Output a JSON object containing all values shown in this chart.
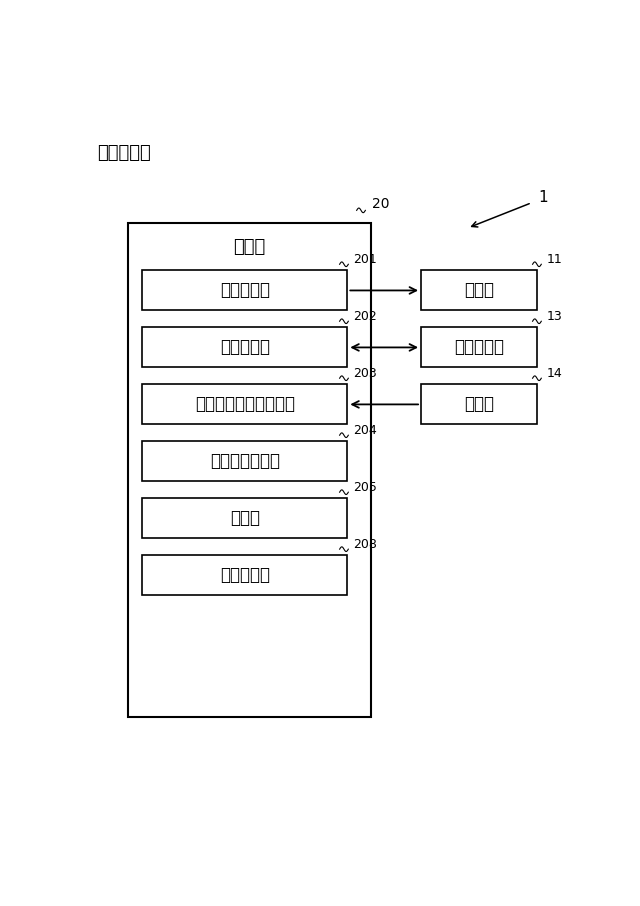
{
  "title": "》図１７》",
  "title_bracket_open": "《",
  "title_text": "》図１７》",
  "bg_color": "#ffffff",
  "fig_label": "1",
  "main_box_label": "制御部",
  "main_box_num": "20",
  "inner_boxes": [
    {
      "label": "画像生成部",
      "num": "201"
    },
    {
      "label": "表示制御部",
      "num": "202"
    },
    {
      "label": "キャリブレーション部",
      "num": "203"
    },
    {
      "label": "検出基準制御部",
      "num": "204"
    },
    {
      "label": "記憶部",
      "num": "205"
    },
    {
      "label": "音声検出部",
      "num": "208"
    }
  ],
  "right_boxes": [
    {
      "label": "表示器",
      "num": "11",
      "row": 0
    },
    {
      "label": "操作検出器",
      "num": "13",
      "row": 1
    },
    {
      "label": "集音器",
      "num": "14",
      "row": 2
    }
  ],
  "arrows": [
    {
      "from_row": 0,
      "direction": "right"
    },
    {
      "from_row": 1,
      "direction": "both"
    },
    {
      "from_row": 2,
      "direction": "left"
    }
  ]
}
